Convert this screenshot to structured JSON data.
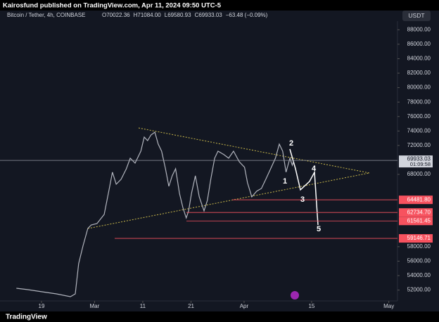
{
  "header": {
    "publisher": "Kairosfund published on TradingView.com, Apr 11, 2024 09:50 UTC-5",
    "symbol": "Bitcoin / Tether, 4h, COINBASE",
    "ohlc": [
      "O70022.36",
      "H71084.00",
      "L69580.93",
      "C69933.03",
      "−63.48 (−0.09%)"
    ],
    "currency": "USDT",
    "logo": "TradingView"
  },
  "chart_data": {
    "type": "line",
    "color": "#b2b5be",
    "xlim": [
      9.4,
      91.8
    ],
    "ylim": [
      50500,
      89200
    ],
    "xticks": [
      {
        "value": 18,
        "label": "19"
      },
      {
        "value": 29,
        "label": "Mar"
      },
      {
        "value": 39,
        "label": "11"
      },
      {
        "value": 49,
        "label": "21"
      },
      {
        "value": 60,
        "label": "Apr"
      },
      {
        "value": 74,
        "label": "15"
      },
      {
        "value": 90,
        "label": "May"
      }
    ],
    "yticks": [
      {
        "value": 88000,
        "label": "88000.00"
      },
      {
        "value": 86000,
        "label": "86000.00"
      },
      {
        "value": 84000,
        "label": "84000.00"
      },
      {
        "value": 82000,
        "label": "82000.00"
      },
      {
        "value": 80000,
        "label": "80000.00"
      },
      {
        "value": 78000,
        "label": "78000.00"
      },
      {
        "value": 76000,
        "label": "76000.00"
      },
      {
        "value": 74000,
        "label": "74000.00"
      },
      {
        "value": 72000,
        "label": "72000.00"
      },
      {
        "value": 68000,
        "label": "68000.00"
      },
      {
        "value": 58000,
        "label": "58000.00"
      },
      {
        "value": 56000,
        "label": "56000.00"
      },
      {
        "value": 54000,
        "label": "54000.00"
      },
      {
        "value": 52000,
        "label": "52000.00"
      }
    ],
    "series": [
      {
        "name": "BTCUSDT",
        "x": [
          12.8,
          15.2,
          18.1,
          21.1,
          24.0,
          25.0,
          25.7,
          26.6,
          27.6,
          28.3,
          29.5,
          31.0,
          32.0,
          32.7,
          33.5,
          34.5,
          35.6,
          36.4,
          37.4,
          38.6,
          39.3,
          40.0,
          40.7,
          41.5,
          42.2,
          42.9,
          43.7,
          44.4,
          45.1,
          45.8,
          46.6,
          47.3,
          48.0,
          48.5,
          49.1,
          49.9,
          50.7,
          51.7,
          52.4,
          53.1,
          53.9,
          54.6,
          55.8,
          56.8,
          57.8,
          59.0,
          60.1,
          60.7,
          61.6,
          62.6,
          63.6,
          64.5,
          65.5,
          66.5,
          67.3,
          68.0,
          68.7,
          69.5,
          70.0,
          70.3
        ],
        "values": [
          52250,
          52060,
          51760,
          51470,
          51080,
          51470,
          55650,
          58080,
          60520,
          61000,
          61200,
          62460,
          65860,
          68300,
          66640,
          67320,
          68780,
          70240,
          69560,
          71210,
          73160,
          72670,
          73450,
          73840,
          72180,
          71210,
          68780,
          66350,
          67810,
          68780,
          65380,
          63430,
          61970,
          62950,
          65380,
          67810,
          64890,
          62950,
          64410,
          67320,
          70240,
          71210,
          70730,
          70240,
          71210,
          69750,
          68980,
          66840,
          64890,
          65670,
          66060,
          67320,
          68780,
          70240,
          72180,
          71210,
          68300,
          70240,
          69270,
          69933.03
        ]
      }
    ],
    "current_price": {
      "value": 69933.03,
      "label": "69933.03",
      "countdown": "01:09:58"
    },
    "levels": [
      {
        "value": 64481.8,
        "label": "64481.80"
      },
      {
        "value": 62734.7,
        "label": "62734.70"
      },
      {
        "value": 61561.45,
        "label": "61561.45"
      },
      {
        "value": 59146.71,
        "label": "59146.71"
      }
    ],
    "wave_labels": [
      "1",
      "2",
      "3",
      "4",
      "5"
    ]
  }
}
